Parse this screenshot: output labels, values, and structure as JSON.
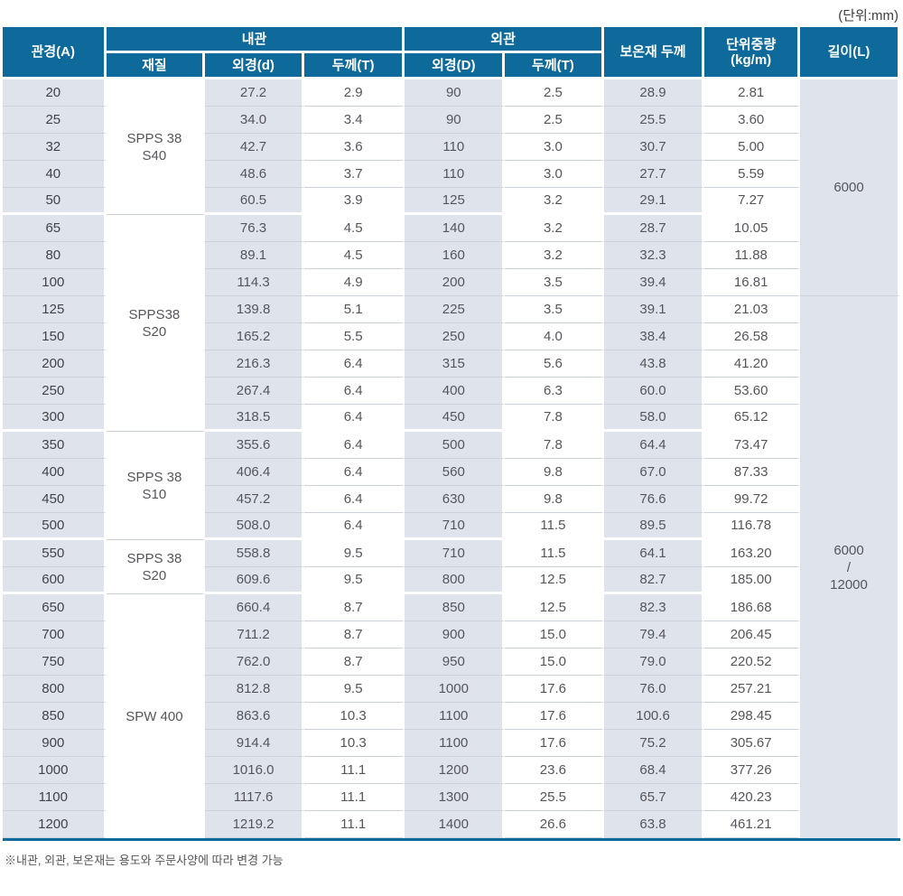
{
  "unit_note": "(단위:mm)",
  "footnote": "※내관, 외관, 보온재는 용도와 주문사양에 따라 변경 가능",
  "colors": {
    "header_bg": "#0d6a9a",
    "shade_bg": "#dfe3ec",
    "row_line": "#cdd1d8",
    "bottom_rule": "#0d6a9a"
  },
  "header": {
    "pipe_size": "관경(A)",
    "inner_group": "내관",
    "outer_group": "외관",
    "material": "재질",
    "inner_od": "외경(d)",
    "inner_thk": "두께(T)",
    "outer_od": "외경(D)",
    "outer_thk": "두께(T)",
    "insulation": "보온재 두께",
    "unit_weight_lines": [
      "단위중량",
      "(kg/m)"
    ],
    "length": "길이(L)"
  },
  "table": {
    "rows": [
      [
        "20",
        "27.2",
        "2.9",
        "90",
        "2.5",
        "28.9",
        "2.81"
      ],
      [
        "25",
        "34.0",
        "3.4",
        "90",
        "2.5",
        "25.5",
        "3.60"
      ],
      [
        "32",
        "42.7",
        "3.6",
        "110",
        "3.0",
        "30.7",
        "5.00"
      ],
      [
        "40",
        "48.6",
        "3.7",
        "110",
        "3.0",
        "27.7",
        "5.59"
      ],
      [
        "50",
        "60.5",
        "3.9",
        "125",
        "3.2",
        "29.1",
        "7.27"
      ],
      [
        "65",
        "76.3",
        "4.5",
        "140",
        "3.2",
        "28.7",
        "10.05"
      ],
      [
        "80",
        "89.1",
        "4.5",
        "160",
        "3.2",
        "32.3",
        "11.88"
      ],
      [
        "100",
        "114.3",
        "4.9",
        "200",
        "3.5",
        "39.4",
        "16.81"
      ],
      [
        "125",
        "139.8",
        "5.1",
        "225",
        "3.5",
        "39.1",
        "21.03"
      ],
      [
        "150",
        "165.2",
        "5.5",
        "250",
        "4.0",
        "38.4",
        "26.58"
      ],
      [
        "200",
        "216.3",
        "6.4",
        "315",
        "5.6",
        "43.8",
        "41.20"
      ],
      [
        "250",
        "267.4",
        "6.4",
        "400",
        "6.3",
        "60.0",
        "53.60"
      ],
      [
        "300",
        "318.5",
        "6.4",
        "450",
        "7.8",
        "58.0",
        "65.12"
      ],
      [
        "350",
        "355.6",
        "6.4",
        "500",
        "7.8",
        "64.4",
        "73.47"
      ],
      [
        "400",
        "406.4",
        "6.4",
        "560",
        "9.8",
        "67.0",
        "87.33"
      ],
      [
        "450",
        "457.2",
        "6.4",
        "630",
        "9.8",
        "76.6",
        "99.72"
      ],
      [
        "500",
        "508.0",
        "6.4",
        "710",
        "11.5",
        "89.5",
        "116.78"
      ],
      [
        "550",
        "558.8",
        "9.5",
        "710",
        "11.5",
        "64.1",
        "163.20"
      ],
      [
        "600",
        "609.6",
        "9.5",
        "800",
        "12.5",
        "82.7",
        "185.00"
      ],
      [
        "650",
        "660.4",
        "8.7",
        "850",
        "12.5",
        "82.3",
        "186.68"
      ],
      [
        "700",
        "711.2",
        "8.7",
        "900",
        "15.0",
        "79.4",
        "206.45"
      ],
      [
        "750",
        "762.0",
        "8.7",
        "950",
        "15.0",
        "79.0",
        "220.52"
      ],
      [
        "800",
        "812.8",
        "9.5",
        "1000",
        "17.6",
        "76.0",
        "257.21"
      ],
      [
        "850",
        "863.6",
        "10.3",
        "1100",
        "17.6",
        "100.6",
        "298.45"
      ],
      [
        "900",
        "914.4",
        "10.3",
        "1100",
        "17.6",
        "75.2",
        "305.67"
      ],
      [
        "1000",
        "1016.0",
        "11.1",
        "1200",
        "23.6",
        "68.4",
        "377.26"
      ],
      [
        "1100",
        "1117.6",
        "11.1",
        "1300",
        "25.5",
        "65.7",
        "420.23"
      ],
      [
        "1200",
        "1219.2",
        "11.1",
        "1400",
        "26.6",
        "63.8",
        "461.21"
      ]
    ],
    "groups": [
      {
        "material": [
          "SPPS 38",
          "S40"
        ],
        "start": 0,
        "count": 5
      },
      {
        "material": [
          "SPPS38",
          "S20"
        ],
        "start": 5,
        "count": 8
      },
      {
        "material": [
          "SPPS 38",
          "S10"
        ],
        "start": 13,
        "count": 4
      },
      {
        "material": [
          "SPPS 38",
          "S20"
        ],
        "start": 17,
        "count": 2
      },
      {
        "material": [
          "SPW 400"
        ],
        "start": 19,
        "count": 9
      }
    ],
    "length_spans": [
      {
        "label": [
          "6000"
        ],
        "start": 0,
        "count": 8
      },
      {
        "label": [
          "6000",
          "/",
          "12000"
        ],
        "start": 8,
        "count": 20
      }
    ]
  }
}
